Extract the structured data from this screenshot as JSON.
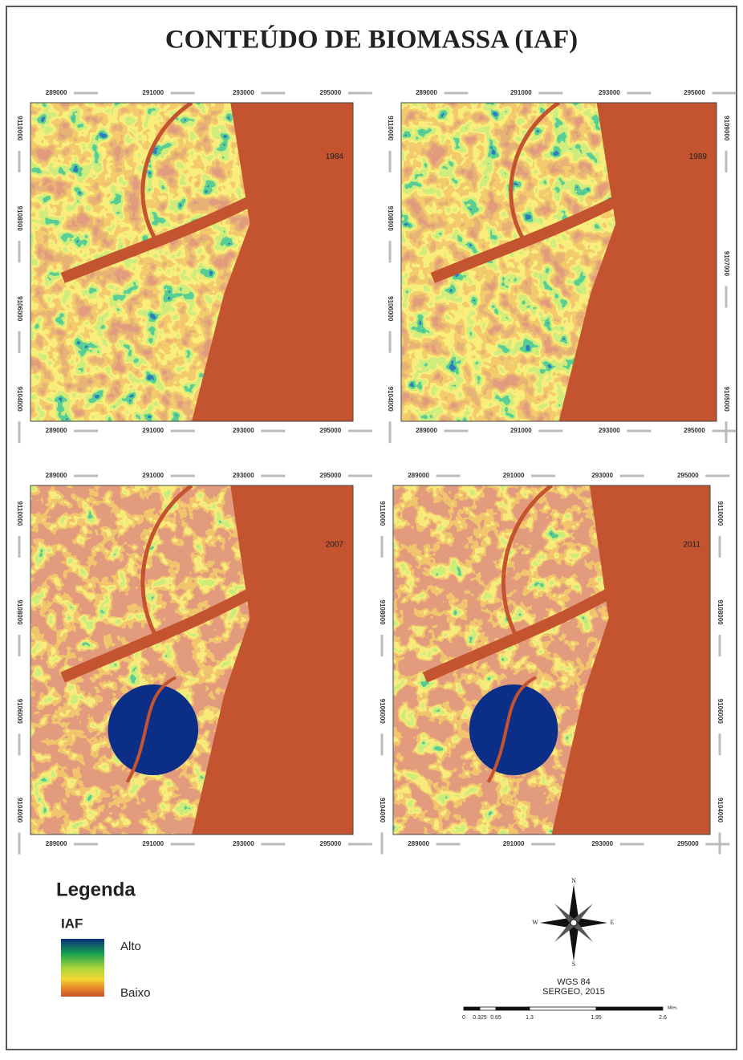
{
  "title": "CONTEÚDO DE BIOMASSA (IAF)",
  "panels": [
    {
      "year": "1984",
      "x_ticks_top": [
        "289000",
        "291000",
        "293000",
        "295000"
      ],
      "x_ticks_bottom": [
        "289000",
        "291000",
        "293000",
        "295000"
      ],
      "y_ticks_left": [
        "9110000",
        "9108000",
        "9106000",
        "9104000"
      ]
    },
    {
      "year": "1989",
      "x_ticks_top": [
        "289000",
        "291000",
        "293000",
        "295000"
      ],
      "x_ticks_bottom": [
        "289000",
        "291000",
        "293000",
        "295000"
      ],
      "y_ticks_left": [
        "9110000",
        "9108000",
        "9106000",
        "9104000"
      ],
      "y_ticks_right": [
        "9109000",
        "9107000",
        "9105000"
      ]
    },
    {
      "year": "2007",
      "x_ticks_top": [
        "289000",
        "291000",
        "293000",
        "295000"
      ],
      "x_ticks_bottom": [
        "289000",
        "291000",
        "293000",
        "295000"
      ],
      "y_ticks_left": [
        "9110000",
        "9108000",
        "9106000",
        "9104000"
      ]
    },
    {
      "year": "2011",
      "x_ticks_top": [
        "289000",
        "291000",
        "293000",
        "295000"
      ],
      "x_ticks_bottom": [
        "289000",
        "291000",
        "293000",
        "295000"
      ],
      "y_ticks_left": [
        "9110000",
        "9108000",
        "9106000",
        "9104000"
      ],
      "y_ticks_right": [
        "9110000",
        "9108000",
        "9106000",
        "9104000"
      ]
    }
  ],
  "legend": {
    "title": "Legenda",
    "variable": "IAF",
    "high": "Alto",
    "low": "Baixo"
  },
  "compass": {
    "north": "N",
    "south": "S",
    "east": "E",
    "west": "W"
  },
  "credits": {
    "datum": "WGS 84",
    "source": "SERGEO, 2015"
  },
  "scale_bar": {
    "labels": [
      "0",
      "0.325",
      "0.65",
      "1.3",
      "1.95",
      "2.6"
    ],
    "unit": "Miles"
  }
}
